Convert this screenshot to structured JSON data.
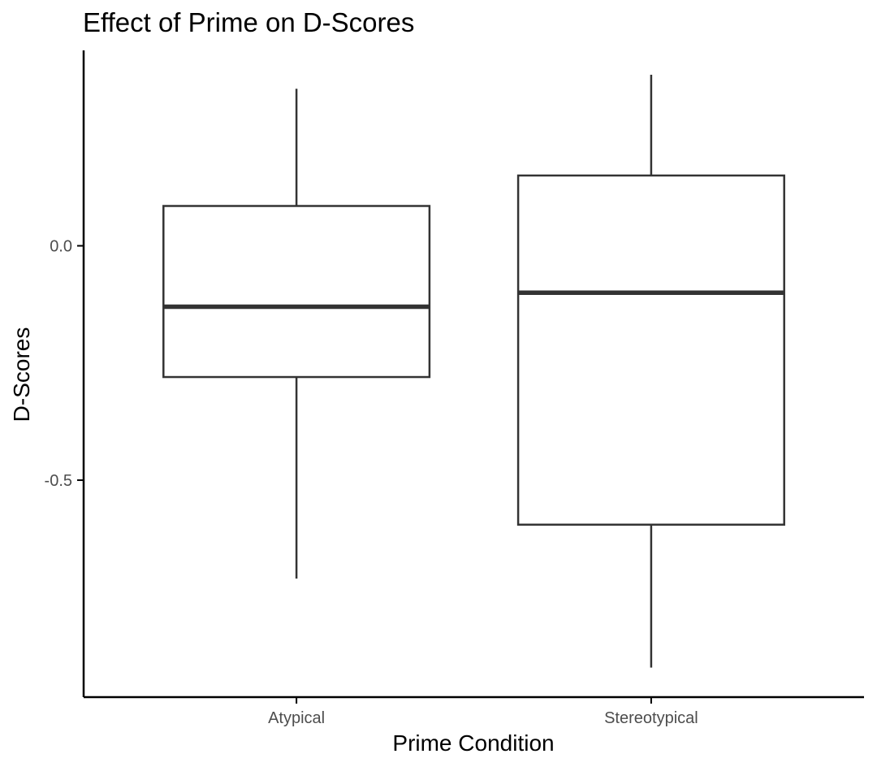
{
  "chart_data": {
    "type": "box",
    "title": "Effect of Prime on D-Scores",
    "xlabel": "Prime Condition",
    "ylabel": "D-Scores",
    "categories": [
      "Atypical",
      "Stereotypical"
    ],
    "boxes": [
      {
        "category": "Atypical",
        "whisker_low": -0.71,
        "q1": -0.28,
        "median": -0.13,
        "q3": 0.085,
        "whisker_high": 0.335
      },
      {
        "category": "Stereotypical",
        "whisker_low": -0.9,
        "q1": -0.595,
        "median": -0.1,
        "q3": 0.15,
        "whisker_high": 0.365
      }
    ],
    "y_ticks": [
      0,
      -0.5
    ],
    "y_tick_labels": [
      "0.0",
      "-0.5"
    ],
    "ylim": [
      -0.963,
      0.417
    ],
    "grid": false,
    "legend": "none",
    "colors": {
      "box_stroke": "#333333",
      "box_fill": "#ffffff",
      "axis": "#000000",
      "tick_label": "#4d4d4d",
      "text": "#000000"
    }
  }
}
